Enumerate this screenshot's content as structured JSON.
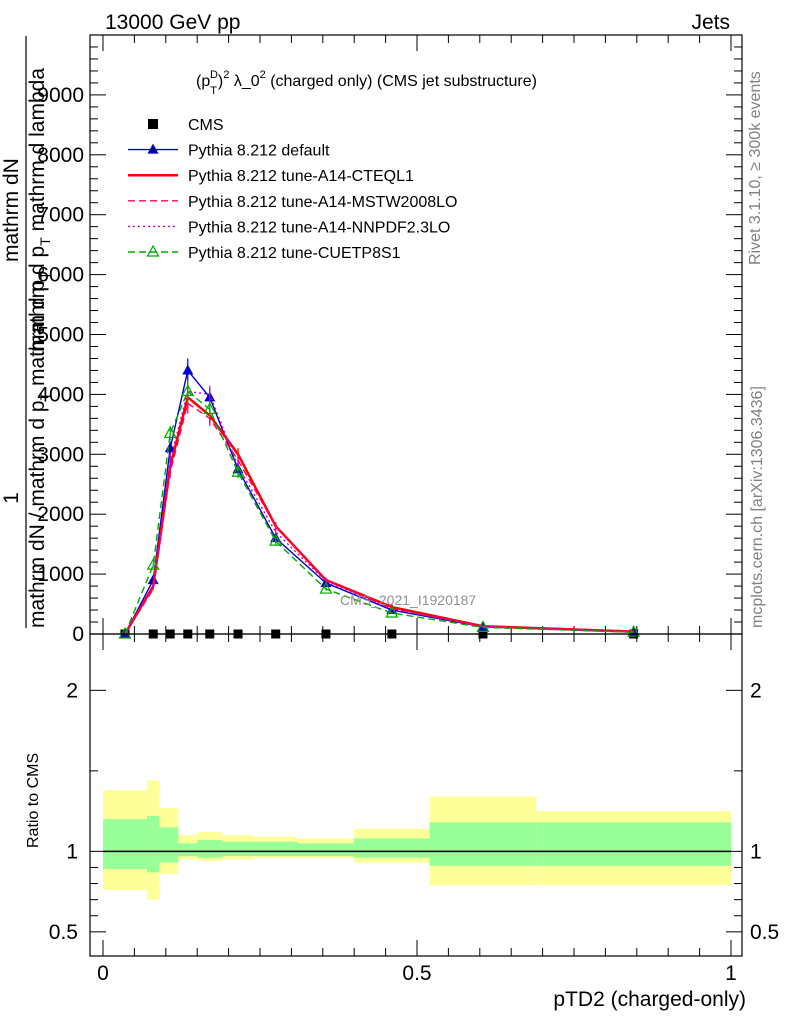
{
  "header": {
    "left_label": "13000 GeV pp",
    "right_label": "Jets"
  },
  "side_labels": {
    "rivet": "Rivet 3.1.10, ≥ 300k events",
    "mcplots": "mcplots.cern.ch [arXiv:1306.3436]"
  },
  "chart_data": [
    {
      "type": "line",
      "title": "(p_T^D)^2 λ_0^2 (charged only) (CMS jet substructure)",
      "title_parts": {
        "base": "(p",
        "sub1": "T",
        "sup1": "D",
        "close": ")",
        "sup2": "2",
        "mid": " λ_0",
        "sup3": "2",
        "tail": " (charged only) (CMS jet substructure)"
      },
      "ylabel_lines": [
        "1",
        "mathrm dN / mathrm d p_T mathrm d p_T",
        "mathrm dN",
        "mathrm d p_T mathrm d lambda"
      ],
      "ylabel_parts": {
        "one": "1",
        "dn1": "mathrm dN / mathrm d p",
        "t1": "T",
        "dn1b": " mathrm d p",
        "t1b": "T",
        "dn2": "mathrm dN",
        "dp2": "mathrm d p",
        "t2": "T",
        "dp2b": " mathrm d lambda"
      },
      "ylim": [
        0,
        10000
      ],
      "yticks": [
        0,
        1000,
        2000,
        3000,
        4000,
        5000,
        6000,
        7000,
        8000,
        9000
      ],
      "ytick_labels": [
        "0",
        "1000",
        "2000",
        "3000",
        "4000",
        "5000",
        "6000",
        "7000",
        "8000",
        "9000"
      ],
      "xlim": [
        0,
        1
      ],
      "watermark": "CMS_2021_I1920187",
      "legend_position": "top-left",
      "x": [
        0.035,
        0.08,
        0.107,
        0.135,
        0.17,
        0.215,
        0.275,
        0.355,
        0.46,
        0.605,
        0.845
      ],
      "series": [
        {
          "name": "CMS",
          "color": "#000000",
          "marker": "square",
          "values": [
            0,
            0,
            0,
            0,
            0,
            0,
            0,
            0,
            0,
            0,
            0
          ]
        },
        {
          "name": "Pythia 8.212 default",
          "color": "#0000cc",
          "marker": "triangle",
          "style": "solid",
          "values": [
            0,
            900,
            3100,
            4400,
            3950,
            2750,
            1600,
            850,
            400,
            120,
            30
          ]
        },
        {
          "name": "Pythia 8.212 tune-A14-CTEQL1",
          "color": "#ff0000",
          "marker": "none",
          "style": "solid",
          "width": 2.5,
          "values": [
            0,
            800,
            2800,
            3950,
            3650,
            3000,
            1800,
            900,
            450,
            130,
            40
          ]
        },
        {
          "name": "Pythia 8.212 tune-A14-MSTW2008LO",
          "color": "#ff0066",
          "marker": "none",
          "style": "dashed",
          "values": [
            0,
            750,
            2700,
            3850,
            3600,
            2900,
            1800,
            900,
            420,
            125,
            35
          ]
        },
        {
          "name": "Pythia 8.212 tune-A14-NNPDF2.3LO",
          "color": "#cc00cc",
          "marker": "none",
          "style": "dotted",
          "values": [
            0,
            800,
            2900,
            4050,
            4000,
            2800,
            1700,
            880,
            420,
            125,
            35
          ]
        },
        {
          "name": "Pythia 8.212 tune-CUETP8S1",
          "color": "#00aa00",
          "marker": "open-triangle",
          "style": "dashed",
          "values": [
            0,
            1150,
            3350,
            4050,
            3750,
            2700,
            1550,
            750,
            350,
            110,
            30
          ]
        }
      ]
    },
    {
      "type": "area",
      "ylabel": "Ratio to CMS",
      "xlabel": "pTD2 (charged-only)",
      "xlim": [
        0,
        1
      ],
      "ylim": [
        0.35,
        2.35
      ],
      "yticks": [
        0.5,
        1,
        2
      ],
      "ytick_labels_left": [
        "0.5",
        "1",
        "2"
      ],
      "ytick_labels_right": [
        "0.5",
        "1",
        "2"
      ],
      "xticks": [
        0,
        0.5,
        1
      ],
      "xtick_labels": [
        "0",
        "0.5",
        "1"
      ],
      "reference_line": 1,
      "bands": {
        "edges": [
          0,
          0.07,
          0.09,
          0.12,
          0.15,
          0.19,
          0.24,
          0.31,
          0.4,
          0.52,
          0.69,
          1.0
        ],
        "yellow_lo": [
          0.76,
          0.7,
          0.86,
          0.95,
          0.94,
          0.95,
          0.96,
          0.96,
          0.93,
          0.79,
          0.79
        ],
        "yellow_hi": [
          1.38,
          1.44,
          1.27,
          1.1,
          1.12,
          1.1,
          1.09,
          1.08,
          1.14,
          1.34,
          1.25
        ],
        "green_lo": [
          0.89,
          0.87,
          0.93,
          0.97,
          0.96,
          0.97,
          0.97,
          0.97,
          0.96,
          0.91,
          0.91
        ],
        "green_hi": [
          1.2,
          1.22,
          1.15,
          1.05,
          1.07,
          1.06,
          1.06,
          1.05,
          1.08,
          1.18,
          1.18
        ],
        "yellow_color": "#ffff99",
        "green_color": "#99ff99"
      }
    }
  ]
}
